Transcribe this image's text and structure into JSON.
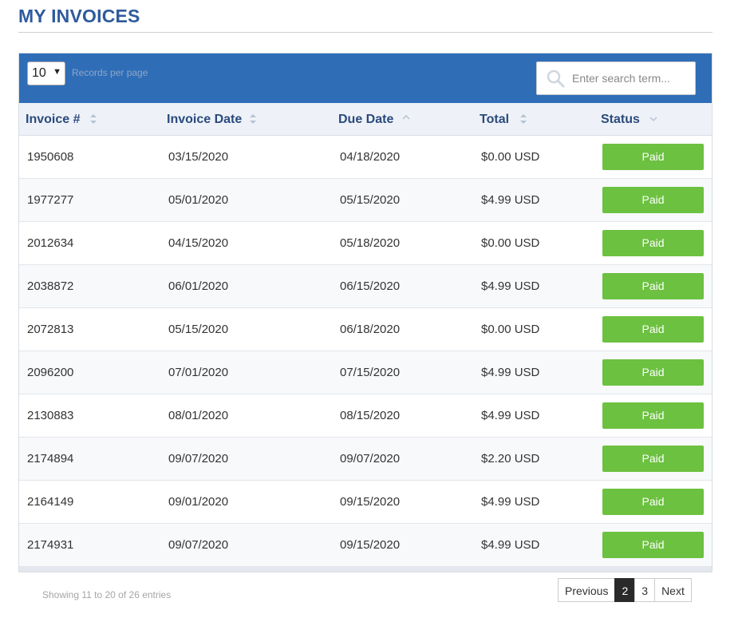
{
  "page": {
    "title": "MY INVOICES"
  },
  "toolbar": {
    "per_page_value": "10",
    "per_page_label": "Records per page",
    "search_placeholder": "Enter search term...",
    "background": "#2f6db7"
  },
  "table": {
    "columns": [
      {
        "label": "Invoice #",
        "sort": "none"
      },
      {
        "label": "Invoice Date",
        "sort": "none"
      },
      {
        "label": "Due Date",
        "sort": "ascending"
      },
      {
        "label": "Total",
        "sort": "none"
      },
      {
        "label": "Status",
        "sort": "none"
      }
    ],
    "rows": [
      {
        "invoice": "1950608",
        "invoice_date": "03/15/2020",
        "due_date": "04/18/2020",
        "total": "$0.00 USD",
        "status": "Paid"
      },
      {
        "invoice": "1977277",
        "invoice_date": "05/01/2020",
        "due_date": "05/15/2020",
        "total": "$4.99 USD",
        "status": "Paid"
      },
      {
        "invoice": "2012634",
        "invoice_date": "04/15/2020",
        "due_date": "05/18/2020",
        "total": "$0.00 USD",
        "status": "Paid"
      },
      {
        "invoice": "2038872",
        "invoice_date": "06/01/2020",
        "due_date": "06/15/2020",
        "total": "$4.99 USD",
        "status": "Paid"
      },
      {
        "invoice": "2072813",
        "invoice_date": "05/15/2020",
        "due_date": "06/18/2020",
        "total": "$0.00 USD",
        "status": "Paid"
      },
      {
        "invoice": "2096200",
        "invoice_date": "07/01/2020",
        "due_date": "07/15/2020",
        "total": "$4.99 USD",
        "status": "Paid"
      },
      {
        "invoice": "2130883",
        "invoice_date": "08/01/2020",
        "due_date": "08/15/2020",
        "total": "$4.99 USD",
        "status": "Paid"
      },
      {
        "invoice": "2174894",
        "invoice_date": "09/07/2020",
        "due_date": "09/07/2020",
        "total": "$2.20 USD",
        "status": "Paid"
      },
      {
        "invoice": "2164149",
        "invoice_date": "09/01/2020",
        "due_date": "09/15/2020",
        "total": "$4.99 USD",
        "status": "Paid"
      },
      {
        "invoice": "2174931",
        "invoice_date": "09/07/2020",
        "due_date": "09/15/2020",
        "total": "$4.99 USD",
        "status": "Paid"
      }
    ],
    "status_color": "#6cc140"
  },
  "footer": {
    "showing_text": "Showing 11 to 20 of 26 entries",
    "pagination": {
      "previous": "Previous",
      "current_page": "2",
      "page_3": "3",
      "next": "Next"
    }
  }
}
